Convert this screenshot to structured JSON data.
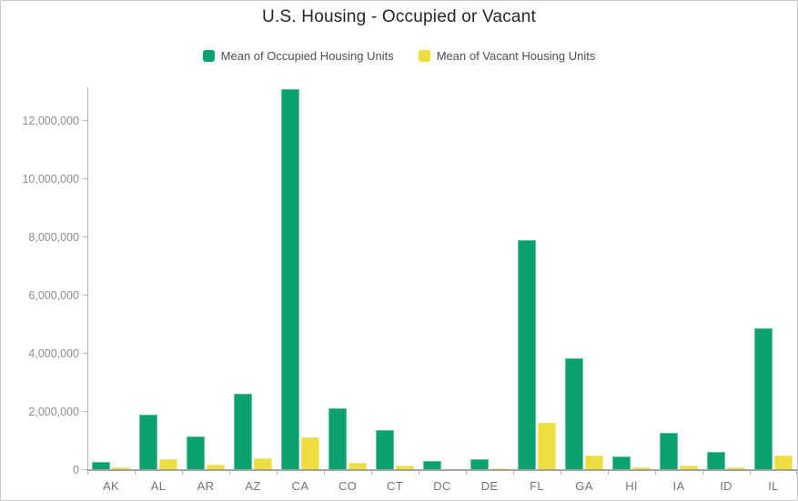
{
  "title": "U.S. Housing - Occupied or Vacant",
  "chart_data": {
    "type": "bar",
    "title": "U.S. Housing - Occupied or Vacant",
    "xlabel": "",
    "ylabel": "",
    "categories": [
      "AK",
      "AL",
      "AR",
      "AZ",
      "CA",
      "CO",
      "CT",
      "DC",
      "DE",
      "FL",
      "GA",
      "HI",
      "IA",
      "ID",
      "IL"
    ],
    "series": [
      {
        "name": "Mean of Occupied Housing Units",
        "color": "#0aa170",
        "values": [
          280000,
          1900000,
          1150000,
          2610000,
          13100000,
          2120000,
          1390000,
          300000,
          370000,
          7920000,
          3830000,
          460000,
          1270000,
          640000,
          4860000
        ]
      },
      {
        "name": "Mean of Vacant Housing Units",
        "color": "#eddd3e",
        "values": [
          80000,
          390000,
          200000,
          400000,
          1130000,
          240000,
          155000,
          35000,
          65000,
          1630000,
          490000,
          85000,
          160000,
          95000,
          490000
        ]
      }
    ],
    "ylim": [
      0,
      13160000
    ],
    "yticks": [
      0,
      2000000,
      4000000,
      6000000,
      8000000,
      10000000,
      12000000
    ],
    "ytick_labels": [
      "0",
      "2,000,000",
      "4,000,000",
      "6,000,000",
      "8,000,000",
      "10,000,000",
      "12,000,000"
    ],
    "grid": false,
    "legend_position": "top-center"
  }
}
